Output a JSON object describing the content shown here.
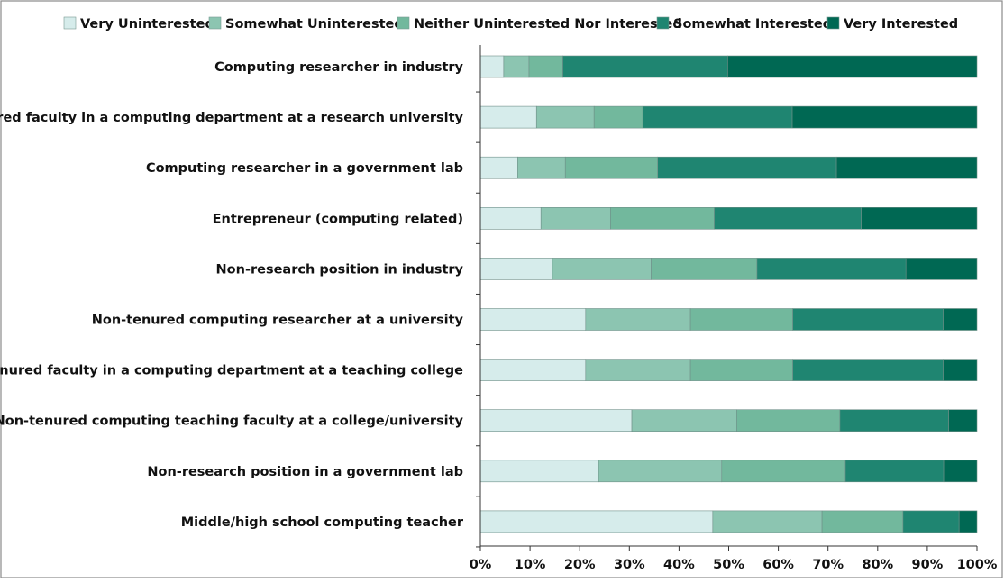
{
  "chart_data": {
    "type": "bar",
    "orientation": "horizontal",
    "stacked": true,
    "percent": true,
    "legend_position": "top",
    "grid": false,
    "xlim": [
      0,
      100
    ],
    "x_ticks": [
      "0%",
      "10%",
      "20%",
      "30%",
      "40%",
      "50%",
      "60%",
      "70%",
      "80%",
      "90%",
      "100%"
    ],
    "categories": [
      "Computing researcher in industry",
      "Tenured faculty in a computing department at a research university",
      "Computing researcher in a government lab",
      "Entrepreneur  (computing related)",
      "Non-research position in industry",
      "Non-tenured computing researcher at a university",
      "Tenured faculty in a computing department at a teaching college",
      "Non-tenured computing teaching faculty at a college/university",
      "Non-research position in a government lab",
      "Middle/high school computing teacher"
    ],
    "series": [
      {
        "name": "Very Uninterested",
        "color": "#d6eceb",
        "values": [
          4.7,
          11.3,
          7.5,
          12.2,
          14.5,
          21.2,
          21.2,
          30.5,
          23.8,
          46.8
        ]
      },
      {
        "name": "Somewhat Uninterested",
        "color": "#8cc5b1",
        "values": [
          5.1,
          11.6,
          9.6,
          14.0,
          19.9,
          21.1,
          21.1,
          21.1,
          24.8,
          22.0
        ]
      },
      {
        "name": "Neither Uninterested Nor Interested",
        "color": "#72b89d",
        "values": [
          6.8,
          9.8,
          18.6,
          20.9,
          21.3,
          20.6,
          20.6,
          20.8,
          24.9,
          16.3
        ]
      },
      {
        "name": "Somewhat Interested",
        "color": "#1f8571",
        "values": [
          33.2,
          30.1,
          36.0,
          29.6,
          30.0,
          30.3,
          30.3,
          21.9,
          19.8,
          11.3
        ]
      },
      {
        "name": "Very Interested",
        "color": "#006853",
        "values": [
          50.2,
          37.2,
          28.3,
          23.3,
          14.3,
          6.8,
          6.8,
          5.7,
          6.7,
          3.6
        ]
      }
    ]
  }
}
